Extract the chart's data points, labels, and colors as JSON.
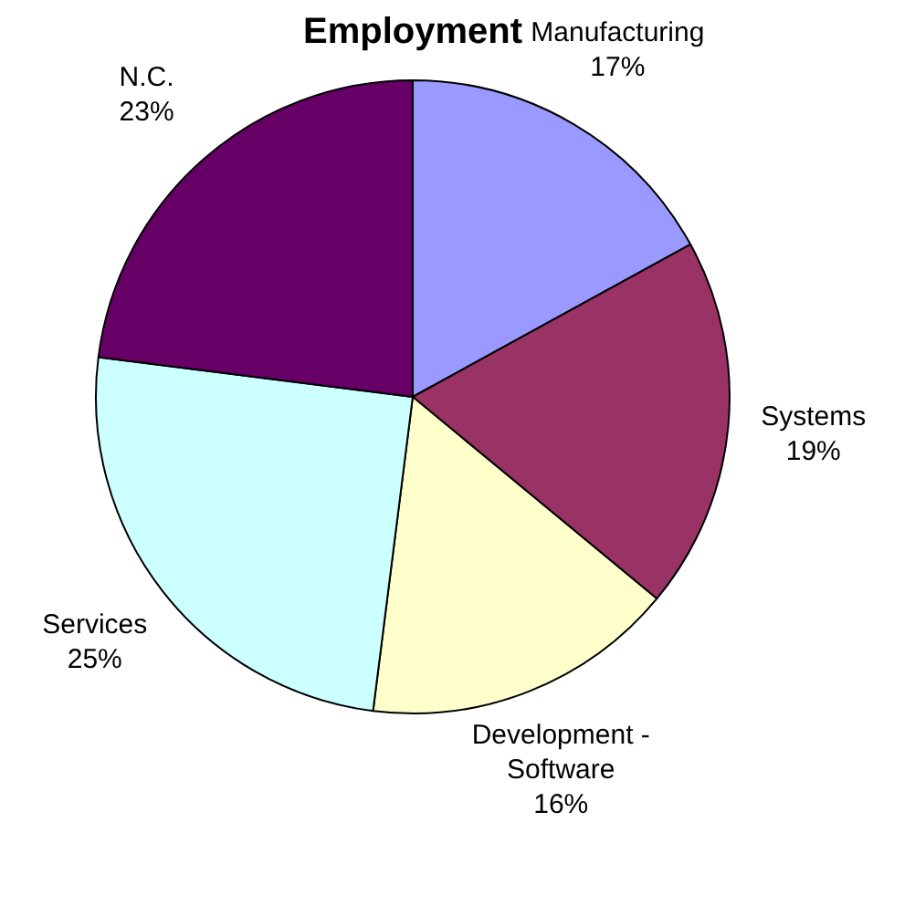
{
  "chart_data": {
    "type": "pie",
    "title": "Employment",
    "categories": [
      "Manufacturing",
      "Systems",
      "Development - Software",
      "Services",
      "N.C."
    ],
    "values": [
      17,
      19,
      16,
      25,
      23
    ],
    "value_labels": [
      "17%",
      "19%",
      "16%",
      "25%",
      "23%"
    ],
    "colors": [
      "#9999ff",
      "#993366",
      "#ffffcc",
      "#ccffff",
      "#660066"
    ],
    "legend": false
  }
}
